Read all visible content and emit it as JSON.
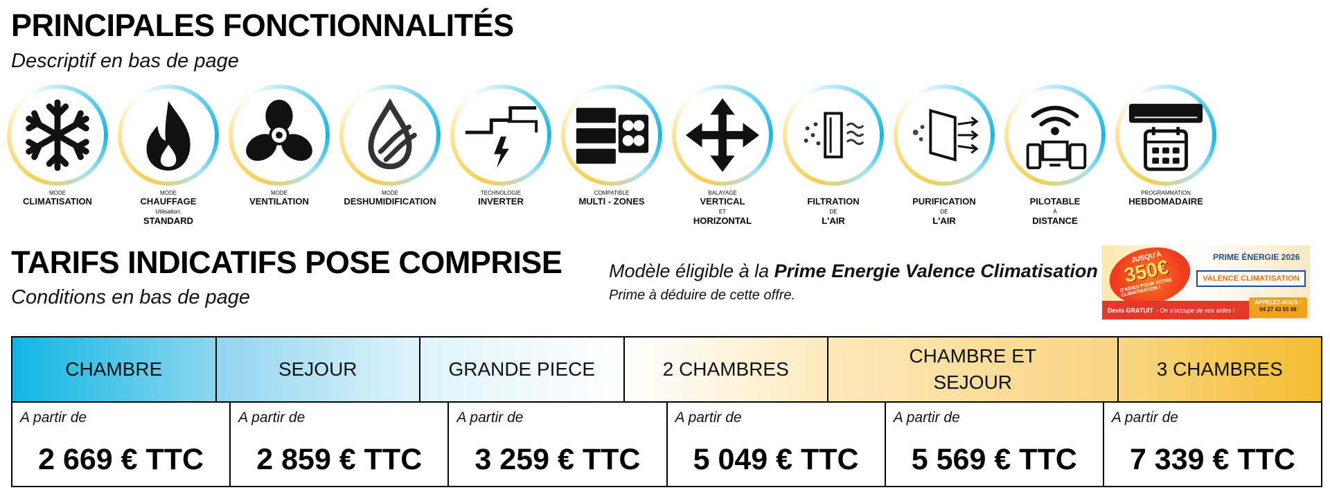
{
  "features_section": {
    "title": "PRINCIPALES FONCTIONNALITÉS",
    "subtitle": "Descriptif en bas de page",
    "items": [
      {
        "small": "MODE",
        "main": "CLIMATISATION",
        "small2": "",
        "main2": "",
        "icon": "snowflake-icon"
      },
      {
        "small": "MODE",
        "main": "CHAUFFAGE",
        "small2": "Utilisation:",
        "main2": "STANDARD",
        "icon": "flame-icon"
      },
      {
        "small": "MODE",
        "main": "VENTILATION",
        "small2": "",
        "main2": "",
        "icon": "fan-icon"
      },
      {
        "small": "MODE",
        "main": "DESHUMIDIFICATION",
        "small2": "",
        "main2": "",
        "icon": "droplet-icon"
      },
      {
        "small": "TECHNOLOGIE",
        "main": "INVERTER",
        "small2": "",
        "main2": "",
        "icon": "inverter-icon"
      },
      {
        "small": "COMPATIBLE",
        "main": "MULTI - ZONES",
        "small2": "",
        "main2": "",
        "icon": "multi-zones-icon"
      },
      {
        "small": "BALAYAGE",
        "main": "VERTICAL",
        "small2": "ET",
        "main2": "HORIZONTAL",
        "icon": "arrows-icon"
      },
      {
        "small": "",
        "main": "FILTRATION",
        "small2": "DE",
        "main2": "L'AIR",
        "icon": "filter-icon"
      },
      {
        "small": "",
        "main": "PURIFICATION",
        "small2": "DE",
        "main2": "L'AIR",
        "icon": "purification-icon"
      },
      {
        "small": "",
        "main": "PILOTABLE",
        "small2": "À",
        "main2": "DISTANCE",
        "icon": "wifi-devices-icon"
      },
      {
        "small": "PROGRAMMATION",
        "main": "HEBDOMADAIRE",
        "small2": "",
        "main2": "",
        "icon": "calendar-ac-icon"
      }
    ]
  },
  "tarifs_section": {
    "title": "TARIFS INDICATIFS POSE COMPRISE",
    "subtitle": "Conditions en bas de page"
  },
  "prime": {
    "line1_prefix": "Modèle éligible à la ",
    "line1_bold": "Prime Energie Valence Climatisation",
    "line2": "Prime à déduire de cette offre."
  },
  "banner": {
    "jusqua": "JUSQU'À",
    "amount": "350€",
    "aides": "D'AIDES POUR VOTRE CLIMATISATION !",
    "title": "PRIME ÉNERGIE 2026",
    "company": "VALENCE CLIMATISATION",
    "devis": "Devis GRATUIT",
    "devis_note": "- On s'occupe de vos aides !",
    "call": "APPELEZ-NOUS !",
    "phone": "04 27 43 55 98"
  },
  "price_table": {
    "from_label": "A partir de",
    "columns": [
      {
        "header": "CHAMBRE",
        "price": "2 669 € TTC",
        "bg": "linear-gradient(90deg, #0fb6e3 0%, #8dd6ef 100%)"
      },
      {
        "header": "SEJOUR",
        "price": "2 859 € TTC",
        "bg": "linear-gradient(90deg, #91d5ef 0%, #dff3fb 100%)"
      },
      {
        "header": "GRANDE PIECE",
        "price": "3 259 € TTC",
        "bg": "linear-gradient(90deg, #def3fb 0%, #ffffff 100%)"
      },
      {
        "header": "2 CHAMBRES",
        "price": "5 049 € TTC",
        "bg": "linear-gradient(90deg, #ffffff 0%, #fde9bd 100%)"
      },
      {
        "header": "CHAMBRE ET SEJOUR",
        "price": "5 569 € TTC",
        "bg": "linear-gradient(90deg, #fde8b9 0%, #f9d583 100%)"
      },
      {
        "header": "3 CHAMBRES",
        "price": "7 339 € TTC",
        "bg": "linear-gradient(90deg, #f9d685 0%, #f4bc30 100%)"
      }
    ]
  }
}
